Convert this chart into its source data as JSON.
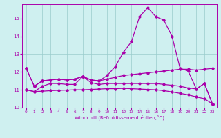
{
  "x": [
    0,
    1,
    2,
    3,
    4,
    5,
    6,
    7,
    8,
    9,
    10,
    11,
    12,
    13,
    14,
    15,
    16,
    17,
    18,
    19,
    20,
    21,
    22,
    23
  ],
  "line_main": [
    12.2,
    11.2,
    11.5,
    11.55,
    11.6,
    11.55,
    11.6,
    11.75,
    11.55,
    11.5,
    11.8,
    12.3,
    13.1,
    13.7,
    15.1,
    15.6,
    15.1,
    14.9,
    14.0,
    12.2,
    12.05,
    11.05,
    11.35,
    10.2
  ],
  "line_upper_flat": [
    12.2,
    11.2,
    11.5,
    11.55,
    11.6,
    11.55,
    11.6,
    11.75,
    11.55,
    11.5,
    11.6,
    11.7,
    11.8,
    11.85,
    11.9,
    11.95,
    12.0,
    12.05,
    12.1,
    12.15,
    12.15,
    12.1,
    12.15,
    12.2
  ],
  "line_mid": [
    11.0,
    10.9,
    11.2,
    11.35,
    11.35,
    11.3,
    11.3,
    11.75,
    11.4,
    11.3,
    11.35,
    11.35,
    11.35,
    11.35,
    11.35,
    11.35,
    11.35,
    11.3,
    11.25,
    11.2,
    11.1,
    11.05,
    11.35,
    10.2
  ],
  "line_lower": [
    11.0,
    10.9,
    10.92,
    10.95,
    10.97,
    10.98,
    11.0,
    11.0,
    11.02,
    11.04,
    11.06,
    11.06,
    11.08,
    11.06,
    11.04,
    11.02,
    11.0,
    10.95,
    10.88,
    10.8,
    10.72,
    10.6,
    10.5,
    10.2
  ],
  "color": "#aa00aa",
  "bg_color": "#cff0f0",
  "grid_color": "#99cccc",
  "xlabel": "Windchill (Refroidissement éolien,°C)",
  "ylim": [
    10,
    15.8
  ],
  "xlim": [
    -0.5,
    23.5
  ],
  "yticks": [
    10,
    11,
    12,
    13,
    14,
    15
  ],
  "xticks": [
    0,
    1,
    2,
    3,
    4,
    5,
    6,
    7,
    8,
    9,
    10,
    11,
    12,
    13,
    14,
    15,
    16,
    17,
    18,
    19,
    20,
    21,
    22,
    23
  ]
}
